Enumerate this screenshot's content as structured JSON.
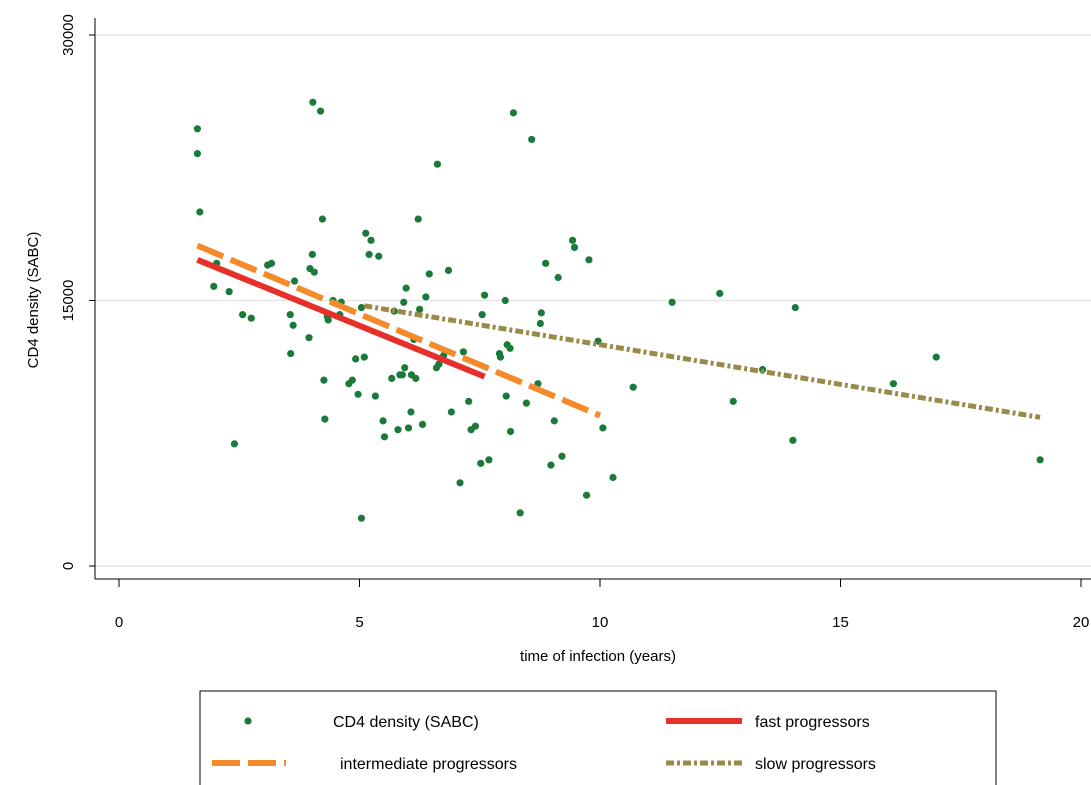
{
  "chart_data": {
    "type": "scatter",
    "xlabel": "time of infection (years)",
    "ylabel": "CD4 density (SABC)",
    "xlim": [
      0,
      20
    ],
    "ylim": [
      0,
      30000
    ],
    "x_ticks": [
      0,
      5,
      10,
      15,
      20
    ],
    "y_ticks": [
      0,
      15000,
      30000
    ],
    "grid": "horizontal",
    "legend_position": "bottom",
    "colors": {
      "points": "#1a7a3a",
      "fast": "#e8302a",
      "intermediate": "#f58a2a",
      "slow": "#9a8a4a"
    },
    "series": [
      {
        "name": "CD4 density (SABC)",
        "kind": "points",
        "points": [
          [
            1.63,
            24700
          ],
          [
            1.63,
            23300
          ],
          [
            1.68,
            20000
          ],
          [
            1.97,
            15800
          ],
          [
            2.03,
            17100
          ],
          [
            2.29,
            15500
          ],
          [
            2.4,
            6900
          ],
          [
            2.57,
            14200
          ],
          [
            2.75,
            14000
          ],
          [
            3.09,
            17000
          ],
          [
            3.17,
            17100
          ],
          [
            3.56,
            14200
          ],
          [
            3.57,
            12000
          ],
          [
            3.62,
            13600
          ],
          [
            3.65,
            16100
          ],
          [
            3.95,
            12900
          ],
          [
            3.97,
            16800
          ],
          [
            4.02,
            17600
          ],
          [
            4.03,
            26200
          ],
          [
            4.06,
            16600
          ],
          [
            4.19,
            25700
          ],
          [
            4.23,
            19600
          ],
          [
            4.26,
            10500
          ],
          [
            4.28,
            8300
          ],
          [
            4.33,
            14100
          ],
          [
            4.35,
            13900
          ],
          [
            4.45,
            15000
          ],
          [
            4.59,
            14200
          ],
          [
            4.62,
            14900
          ],
          [
            4.78,
            10300
          ],
          [
            4.85,
            10500
          ],
          [
            4.92,
            11700
          ],
          [
            4.97,
            9700
          ],
          [
            5.04,
            2700
          ],
          [
            5.04,
            14600
          ],
          [
            5.1,
            11800
          ],
          [
            5.13,
            18800
          ],
          [
            5.2,
            17600
          ],
          [
            5.24,
            18400
          ],
          [
            5.33,
            9600
          ],
          [
            5.4,
            17500
          ],
          [
            5.49,
            8200
          ],
          [
            5.52,
            7300
          ],
          [
            5.67,
            10600
          ],
          [
            5.72,
            14400
          ],
          [
            5.8,
            7700
          ],
          [
            5.84,
            10800
          ],
          [
            5.89,
            10800
          ],
          [
            5.92,
            14900
          ],
          [
            5.94,
            11200
          ],
          [
            5.97,
            15700
          ],
          [
            6.02,
            7800
          ],
          [
            6.07,
            8700
          ],
          [
            6.08,
            10800
          ],
          [
            6.13,
            12800
          ],
          [
            6.17,
            10600
          ],
          [
            6.22,
            19600
          ],
          [
            6.25,
            14500
          ],
          [
            6.31,
            8000
          ],
          [
            6.38,
            15200
          ],
          [
            6.45,
            16500
          ],
          [
            6.6,
            11200
          ],
          [
            6.62,
            22700
          ],
          [
            6.65,
            11400
          ],
          [
            6.75,
            11900
          ],
          [
            6.85,
            16700
          ],
          [
            6.91,
            8700
          ],
          [
            7.09,
            4700
          ],
          [
            7.16,
            12100
          ],
          [
            7.27,
            9300
          ],
          [
            7.32,
            7700
          ],
          [
            7.41,
            7900
          ],
          [
            7.52,
            5800
          ],
          [
            7.55,
            14200
          ],
          [
            7.6,
            15300
          ],
          [
            7.69,
            6000
          ],
          [
            7.91,
            12000
          ],
          [
            7.93,
            11800
          ],
          [
            8.03,
            15000
          ],
          [
            8.05,
            9600
          ],
          [
            8.07,
            12500
          ],
          [
            8.13,
            12300
          ],
          [
            8.14,
            7600
          ],
          [
            8.2,
            25600
          ],
          [
            8.34,
            3000
          ],
          [
            8.47,
            9200
          ],
          [
            8.58,
            24100
          ],
          [
            8.71,
            10300
          ],
          [
            8.76,
            13700
          ],
          [
            8.78,
            14300
          ],
          [
            8.87,
            17100
          ],
          [
            8.98,
            5700
          ],
          [
            9.05,
            8200
          ],
          [
            9.13,
            16300
          ],
          [
            9.21,
            6200
          ],
          [
            9.43,
            18400
          ],
          [
            9.47,
            18000
          ],
          [
            9.72,
            4000
          ],
          [
            9.77,
            17300
          ],
          [
            9.96,
            12700
          ],
          [
            10.06,
            7800
          ],
          [
            10.27,
            5000
          ],
          [
            10.69,
            10100
          ],
          [
            11.5,
            14900
          ],
          [
            12.49,
            15400
          ],
          [
            12.77,
            9300
          ],
          [
            13.38,
            11100
          ],
          [
            14.01,
            7100
          ],
          [
            14.06,
            14600
          ],
          [
            16.1,
            10300
          ],
          [
            16.99,
            11800
          ],
          [
            19.15,
            6000
          ]
        ]
      },
      {
        "name": "fast progressors",
        "kind": "line",
        "style": "solid",
        "x": [
          1.63,
          7.6
        ],
        "y": [
          17300,
          10700
        ]
      },
      {
        "name": "intermediate progressors",
        "kind": "line",
        "style": "dashed",
        "x": [
          1.63,
          10.0
        ],
        "y": [
          18100,
          8500
        ]
      },
      {
        "name": "slow progressors",
        "kind": "line",
        "style": "dash-dot",
        "x": [
          5.1,
          19.15
        ],
        "y": [
          14700,
          8400
        ]
      }
    ]
  },
  "legend": {
    "items": [
      {
        "label": "CD4 density (SABC)",
        "key": "points"
      },
      {
        "label": "fast progressors",
        "key": "fast"
      },
      {
        "label": "intermediate progressors",
        "key": "intermediate"
      },
      {
        "label": "slow progressors",
        "key": "slow"
      }
    ]
  }
}
